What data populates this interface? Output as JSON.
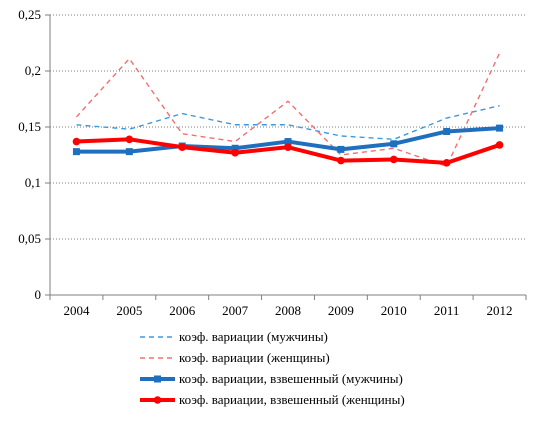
{
  "chart_data": {
    "type": "line",
    "categories": [
      "2004",
      "2005",
      "2006",
      "2007",
      "2008",
      "2009",
      "2010",
      "2011",
      "2012"
    ],
    "ylim": [
      0,
      0.25
    ],
    "yticks": [
      "0",
      "0,05",
      "0,1",
      "0,15",
      "0,2",
      "0,25"
    ],
    "grid": "horizontal-dotted",
    "legend_position": "bottom",
    "series": [
      {
        "name": "коэф. вариации (мужчины)",
        "values": [
          0.152,
          0.148,
          0.162,
          0.152,
          0.152,
          0.142,
          0.139,
          0.158,
          0.169
        ],
        "color": "#3a9ae0",
        "style": "dashed"
      },
      {
        "name": "коэф. вариации (женщины)",
        "values": [
          0.159,
          0.211,
          0.144,
          0.137,
          0.173,
          0.125,
          0.131,
          0.115,
          0.216
        ],
        "color": "#f07070",
        "style": "dashed"
      },
      {
        "name": "коэф. вариации, взвешенный (мужчины)",
        "values": [
          0.128,
          0.128,
          0.133,
          0.131,
          0.137,
          0.13,
          0.135,
          0.146,
          0.149
        ],
        "color": "#1f6fbf",
        "style": "solid-square-markers"
      },
      {
        "name": "коэф. вариации, взвешенный (женщины)",
        "values": [
          0.137,
          0.139,
          0.132,
          0.127,
          0.132,
          0.12,
          0.121,
          0.118,
          0.134
        ],
        "color": "#ff0000",
        "style": "solid-circle-markers"
      }
    ]
  }
}
